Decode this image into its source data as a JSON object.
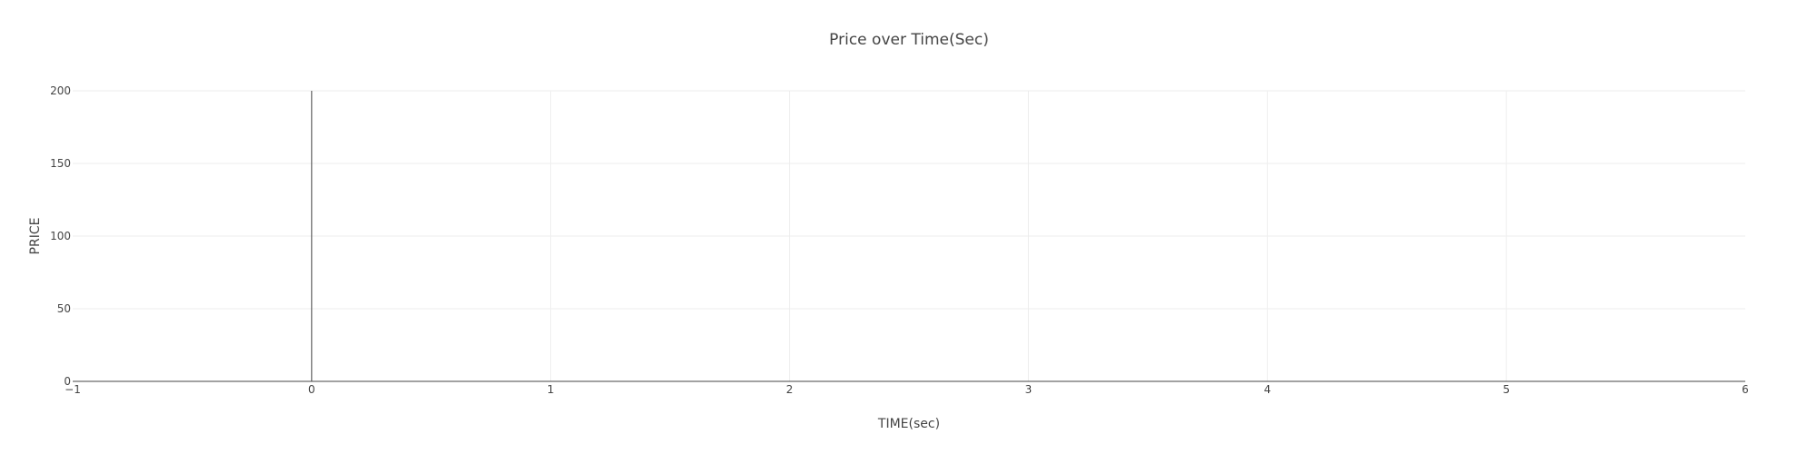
{
  "chart_data": {
    "type": "line",
    "title": "Price over Time(Sec)",
    "xlabel": "TIME(sec)",
    "ylabel": "PRICE",
    "xlim": [
      -1,
      6
    ],
    "ylim": [
      0,
      200
    ],
    "x_ticks": [
      -1,
      0,
      1,
      2,
      3,
      4,
      5,
      6
    ],
    "x_tick_labels": [
      "−1",
      "0",
      "1",
      "2",
      "3",
      "4",
      "5",
      "6"
    ],
    "y_ticks": [
      0,
      50,
      100,
      150,
      200
    ],
    "y_tick_labels": [
      "0",
      "50",
      "100",
      "150",
      "200"
    ],
    "grid": true,
    "zero_line_x": 0,
    "series": [],
    "colors": {
      "text": "#444444",
      "grid": "#eeeeee",
      "axis": "#444444"
    }
  }
}
